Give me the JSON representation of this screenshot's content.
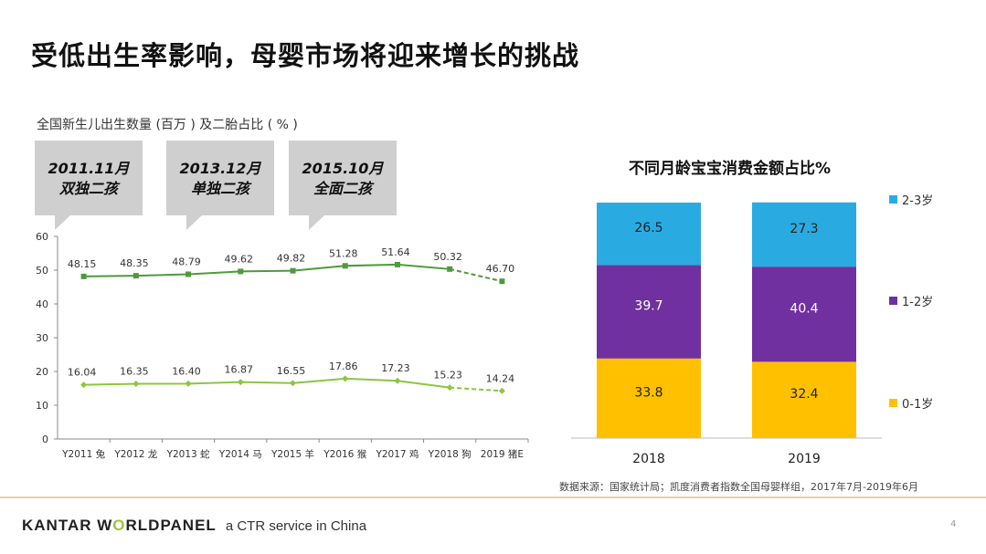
{
  "title": "受低出生率影响，母婴市场将迎来增长的挑战",
  "line_section": {
    "title": "全国新生儿出生数量 (百万 ) 及二胎占比 ( % )",
    "callouts": [
      {
        "line1": "2011.11月",
        "line2": "双独二孩"
      },
      {
        "line1": "2013.12月",
        "line2": "单独二孩"
      },
      {
        "line1": "2015.10月",
        "line2": "全面二孩"
      }
    ]
  },
  "bar_section": {
    "title": "不同月龄宝宝消费金额占比%",
    "legend": [
      "2-3岁",
      "1-2岁",
      "0-1岁"
    ]
  },
  "source": "数据来源：国家统计局；凯度消费者指数全国母婴样组，2017年7月-2019年6月",
  "footer": {
    "brand_part1": "KANTAR W",
    "brand_accent": "O",
    "brand_part2": "RLDPANEL",
    "ctr": "a CTR service in China",
    "page": "4"
  },
  "colors": {
    "line_dark": "#4f9a3a",
    "line_light": "#8cc63f",
    "bar_blue": "#29abe2",
    "bar_purple": "#7030a0",
    "bar_yellow": "#ffc000"
  },
  "chart_data": [
    {
      "type": "line",
      "title": "全国新生儿出生数量 (百万 ) 及二胎占比 ( % )",
      "categories": [
        "Y2011 兔",
        "Y2012 龙",
        "Y2013 蛇",
        "Y2014 马",
        "Y2015 羊",
        "Y2016 猴",
        "Y2017 鸡",
        "Y2018 狗",
        "2019 猪E"
      ],
      "series": [
        {
          "values": [
            48.15,
            48.35,
            48.79,
            49.62,
            49.82,
            51.28,
            51.64,
            50.32,
            46.7
          ],
          "labels": [
            "48.15",
            "48.35",
            "48.79",
            "49.62",
            "49.82",
            "51.28",
            "51.64",
            "50.32",
            "46.70"
          ]
        },
        {
          "values": [
            16.04,
            16.35,
            16.4,
            16.87,
            16.55,
            17.86,
            17.23,
            15.23,
            14.24
          ],
          "labels": [
            "16.04",
            "16.35",
            "16.40",
            "16.87",
            "16.55",
            "17.86",
            "17.23",
            "15.23",
            "14.24"
          ]
        }
      ],
      "ylim": [
        0,
        60
      ],
      "yticks": [
        "0",
        "10",
        "20",
        "30",
        "40",
        "50",
        "60"
      ],
      "last_segment_dashed": true,
      "grid": false
    },
    {
      "type": "bar",
      "stacked": true,
      "title": "不同月龄宝宝消费金额占比%",
      "categories": [
        "2018",
        "2019"
      ],
      "series": [
        {
          "name": "0-1岁",
          "values": [
            33.8,
            32.4
          ],
          "labels": [
            "33.8",
            "32.4"
          ]
        },
        {
          "name": "1-2岁",
          "values": [
            39.7,
            40.4
          ],
          "labels": [
            "39.7",
            "40.4"
          ]
        },
        {
          "name": "2-3岁",
          "values": [
            26.5,
            27.3
          ],
          "labels": [
            "26.5",
            "27.3"
          ]
        }
      ],
      "ylim": [
        0,
        100
      ],
      "legend": "right"
    }
  ]
}
